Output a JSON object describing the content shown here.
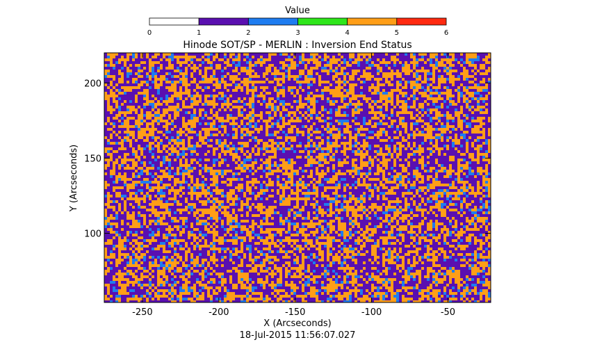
{
  "colorbar": {
    "label": "Value",
    "ticks": [
      "0",
      "1",
      "2",
      "3",
      "4",
      "5",
      "6"
    ],
    "bins": [
      {
        "from": 0,
        "to": 1,
        "color": "#ffffff"
      },
      {
        "from": 1,
        "to": 2,
        "color": "#5a0fb0"
      },
      {
        "from": 2,
        "to": 3,
        "color": "#1e7cf0"
      },
      {
        "from": 3,
        "to": 4,
        "color": "#2ee61a"
      },
      {
        "from": 4,
        "to": 5,
        "color": "#ff9e17"
      },
      {
        "from": 5,
        "to": 6,
        "color": "#ff2a10"
      }
    ]
  },
  "chart_data": {
    "type": "heatmap",
    "title": "Hinode SOT/SP - MERLIN : Inversion End Status",
    "xlabel": "X (Arcseconds)",
    "ylabel": "Y (Arcseconds)",
    "xlim": [
      -275,
      -22
    ],
    "ylim": [
      54,
      220
    ],
    "x_ticks": [
      -250,
      -200,
      -150,
      -100,
      -50
    ],
    "y_ticks": [
      100,
      150,
      200
    ],
    "value_range": [
      0,
      6
    ],
    "dominant_values": [
      {
        "value_bin": "1-2",
        "color": "#5a0fb0",
        "share": 0.45
      },
      {
        "value_bin": "4-5",
        "color": "#ff9e17",
        "share": 0.42
      },
      {
        "value_bin": "2-3",
        "color": "#1e7cf0",
        "share": 0.13
      }
    ],
    "grid": false
  },
  "footer": {
    "timestamp": "18-Jul-2015 11:56:07.027"
  }
}
